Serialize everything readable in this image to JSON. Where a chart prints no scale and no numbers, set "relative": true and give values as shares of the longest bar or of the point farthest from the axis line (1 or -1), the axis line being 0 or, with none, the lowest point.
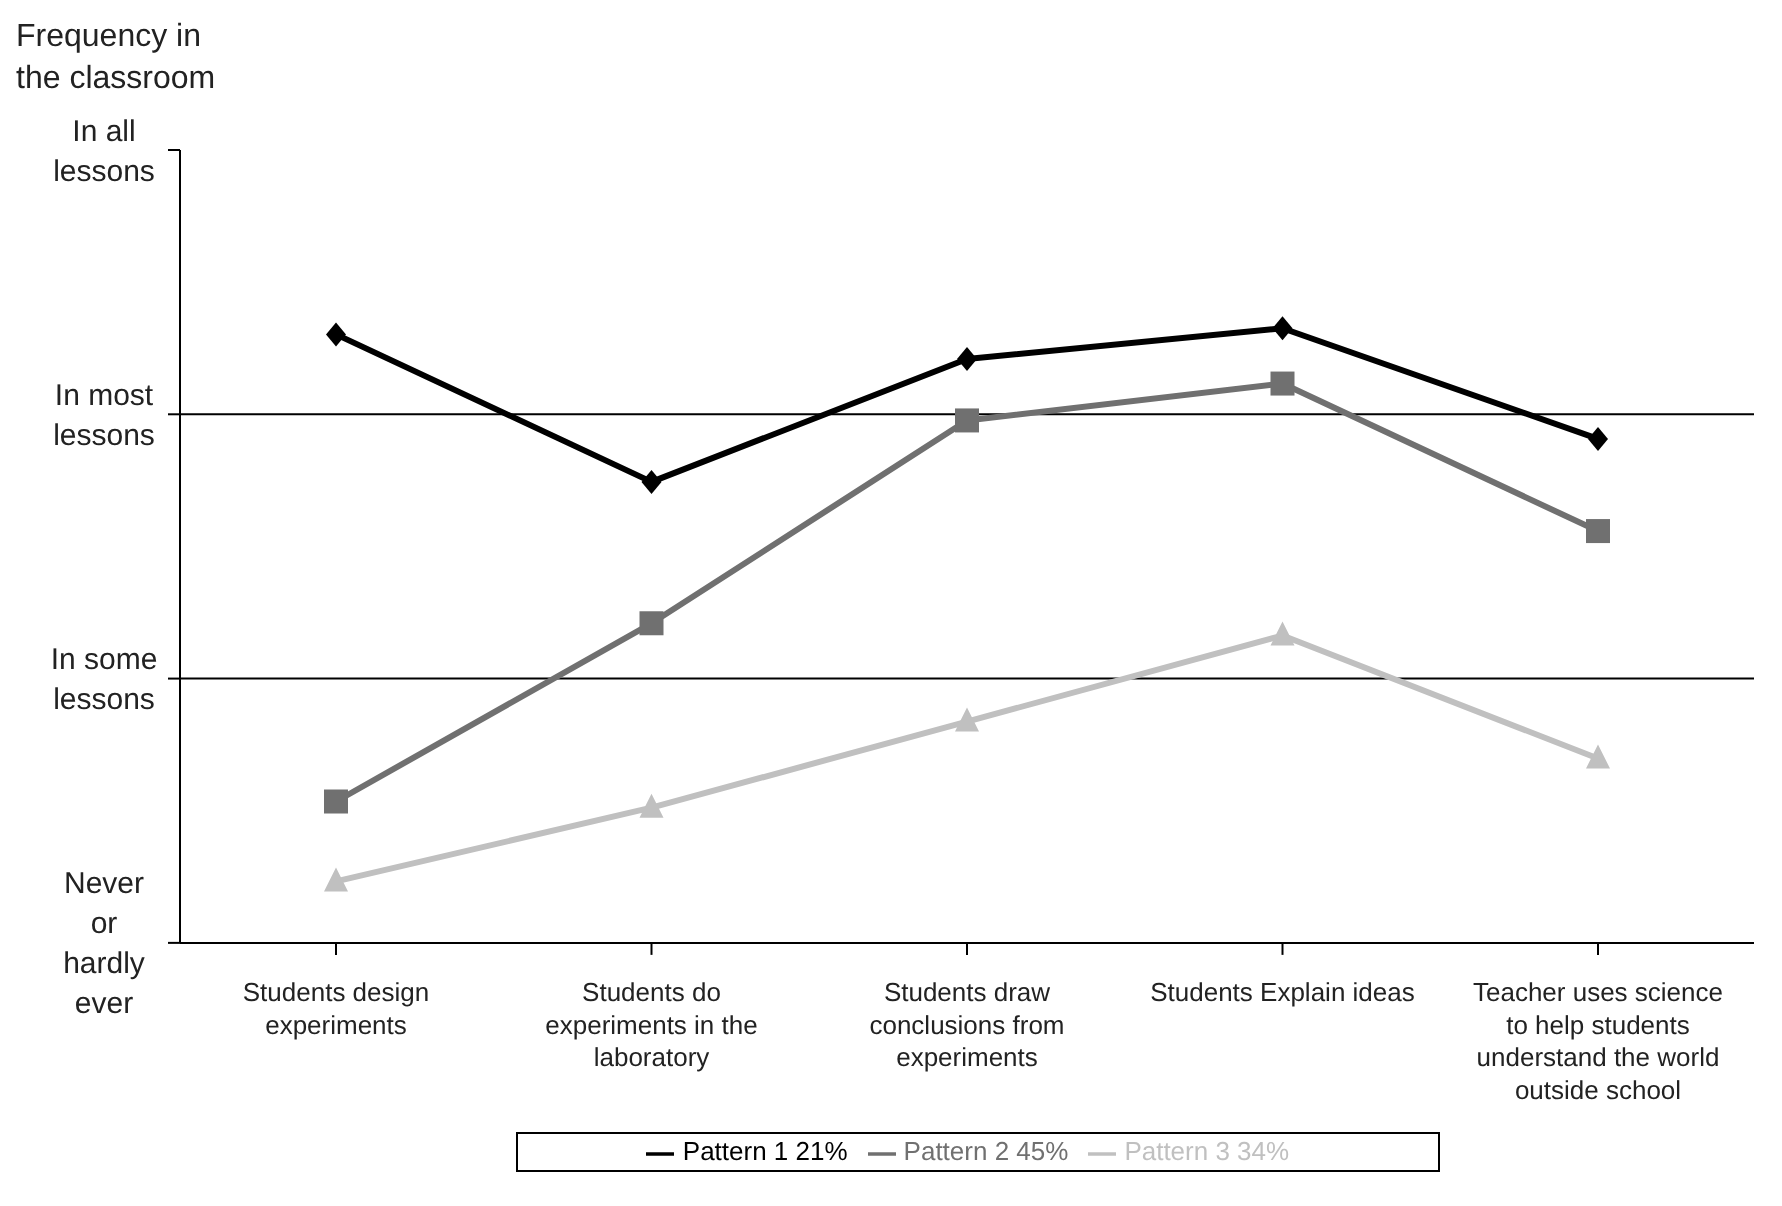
{
  "chart_data": {
    "type": "line",
    "relative": true,
    "categories": [
      "Students design experiments",
      "Students do experiments in the laboratory",
      "Students draw conclusions from experiments",
      "Students Explain ideas",
      "Teacher uses science to help students understand the world outside school"
    ],
    "series": [
      {
        "name": "Pattern 1 21%",
        "color": "#000000",
        "marker": "diamond",
        "values": [
          0.99,
          0.75,
          0.95,
          1,
          0.82
        ]
      },
      {
        "name": "Pattern 2 45%",
        "color": "#707070",
        "marker": "square",
        "values": [
          0.23,
          0.52,
          0.85,
          0.91,
          0.67
        ]
      },
      {
        "name": "Pattern 3 34%",
        "color": "#c0c0c0",
        "marker": "triangle",
        "values": [
          0.1,
          0.22,
          0.36,
          0.5,
          0.3
        ]
      }
    ],
    "annotations": [
      "Frequency in the classroom",
      "In all lessons",
      "In most lessons",
      "In some lessons",
      "Never or hardly ever"
    ],
    "ref_lines": [
      {
        "axis": "y",
        "value": 0.86,
        "color": "#000000"
      },
      {
        "axis": "y",
        "value": 0.43,
        "color": "#000000"
      }
    ],
    "legend": "bottom",
    "line_style": "solid"
  }
}
